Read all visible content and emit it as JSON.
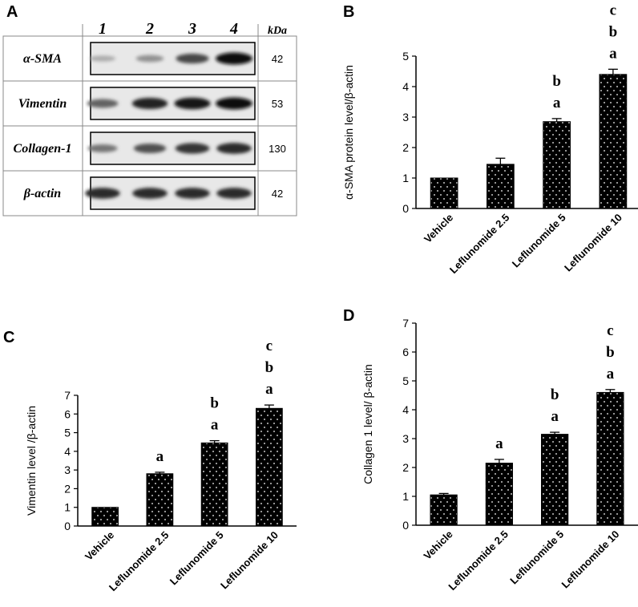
{
  "figure": {
    "panel_letters": [
      "A",
      "B",
      "C",
      "D"
    ]
  },
  "blot": {
    "lane_labels": [
      "1",
      "2",
      "3",
      "4"
    ],
    "kda_header": "kDa",
    "rows": [
      {
        "protein": "α-SMA",
        "kda": "42",
        "intensities": [
          0.15,
          0.3,
          0.7,
          1.0
        ]
      },
      {
        "protein": "Vimentin",
        "kda": "53",
        "intensities": [
          0.55,
          0.9,
          0.95,
          1.0
        ]
      },
      {
        "protein": "Collagen-1",
        "kda": "130",
        "intensities": [
          0.45,
          0.65,
          0.8,
          0.85
        ]
      },
      {
        "protein": "β-actin",
        "kda": "42",
        "intensities": [
          0.85,
          0.85,
          0.85,
          0.85
        ]
      }
    ]
  },
  "chart_data": [
    {
      "panel": "B",
      "type": "bar",
      "categories": [
        "Vehicle",
        "Leflunomide 2.5",
        "Leflunomide 5",
        "Leflunomide 10"
      ],
      "values": [
        1.0,
        1.45,
        2.85,
        4.4
      ],
      "errors": [
        0.0,
        0.2,
        0.1,
        0.17
      ],
      "significance": [
        [],
        [],
        [
          "a",
          "b"
        ],
        [
          "a",
          "b",
          "c"
        ]
      ],
      "ylabel": "α-SMA protein level/β-actin",
      "ylim": [
        0,
        5
      ],
      "yticks": [
        "0",
        "1",
        "2",
        "3",
        "4",
        "5"
      ],
      "grid": false
    },
    {
      "panel": "C",
      "type": "bar",
      "categories": [
        "Vehicle",
        "Leflunomide 2.5",
        "Leflunomide 5",
        "Leflunomide 10"
      ],
      "values": [
        1.0,
        2.8,
        4.45,
        6.3
      ],
      "errors": [
        0.0,
        0.08,
        0.12,
        0.18
      ],
      "significance": [
        [],
        [
          "a"
        ],
        [
          "a",
          "b"
        ],
        [
          "a",
          "b",
          "c"
        ]
      ],
      "ylabel": "Vimentin level /β-actin",
      "ylim": [
        0,
        7
      ],
      "yticks": [
        "0",
        "1",
        "2",
        "3",
        "4",
        "5",
        "6",
        "7"
      ],
      "grid": false
    },
    {
      "panel": "D",
      "type": "bar",
      "categories": [
        "Vehicle",
        "Leflunomide 2.5",
        "Leflunomide 5",
        "Leflunomide 10"
      ],
      "values": [
        1.05,
        2.15,
        3.15,
        4.6
      ],
      "errors": [
        0.05,
        0.13,
        0.07,
        0.1
      ],
      "significance": [
        [],
        [
          "a"
        ],
        [
          "a",
          "b"
        ],
        [
          "a",
          "b",
          "c"
        ]
      ],
      "ylabel": "Collagen 1 level/ β-actin",
      "ylim": [
        0,
        7
      ],
      "yticks": [
        "0",
        "1",
        "2",
        "3",
        "4",
        "5",
        "6",
        "7"
      ],
      "grid": false
    }
  ],
  "colors": {
    "bar_fill": "#000000",
    "bar_dots": "#ffffff",
    "band": "#1a1a1a",
    "blot_bg": "#e8e8e8"
  }
}
